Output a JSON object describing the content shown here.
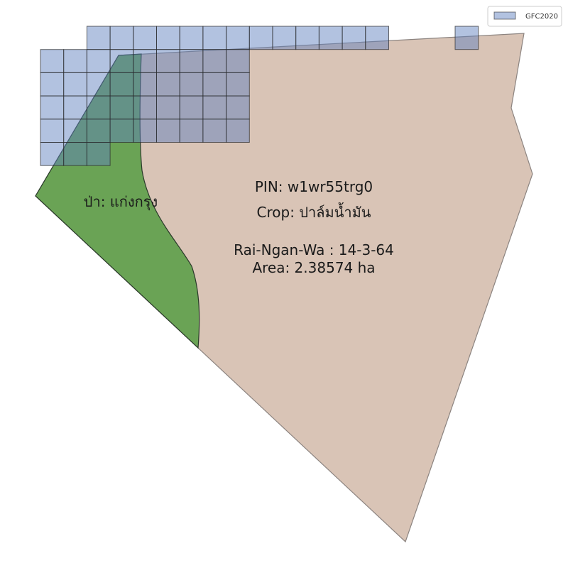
{
  "legend": {
    "label": "GFC2020",
    "swatch_color": "#5f7fbf"
  },
  "parcel": {
    "pin": "PIN: w1wr55trg0",
    "crop": "Crop: ปาล์มน้ำมัน",
    "rai_ngan_wa": "Rai-Ngan-Wa : 14-3-64",
    "area": "Area: 2.38574 ha",
    "fill_color": "#d9c4b6"
  },
  "forest": {
    "label": "ป่า: แก่งกรุง",
    "fill_color": "#4a9a3a"
  }
}
